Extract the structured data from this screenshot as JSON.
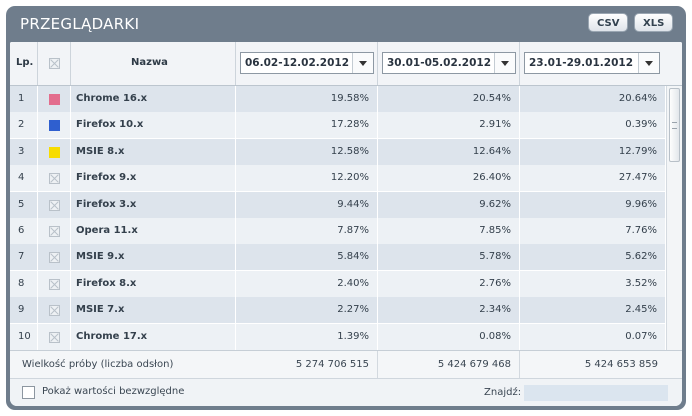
{
  "title": "PRZEGLĄDARKI",
  "export": {
    "csv": "CSV",
    "xls": "XLS"
  },
  "header": {
    "lp": "Lp.",
    "name": "Nazwa",
    "periods": [
      "06.02-12.02.2012",
      "30.01-05.02.2012",
      "23.01-29.01.2012"
    ]
  },
  "rows": [
    {
      "lp": "1",
      "color": "#e36d8d",
      "name": "Chrome 16.x",
      "v": [
        "19.58%",
        "20.54%",
        "20.64%"
      ]
    },
    {
      "lp": "2",
      "color": "#2f5fcf",
      "name": "Firefox 10.x",
      "v": [
        "17.28%",
        "2.91%",
        "0.39%"
      ]
    },
    {
      "lp": "3",
      "color": "#f7dc00",
      "name": "MSIE 8.x",
      "v": [
        "12.58%",
        "12.64%",
        "12.79%"
      ]
    },
    {
      "lp": "4",
      "color": "",
      "name": "Firefox 9.x",
      "v": [
        "12.20%",
        "26.40%",
        "27.47%"
      ]
    },
    {
      "lp": "5",
      "color": "",
      "name": "Firefox 3.x",
      "v": [
        "9.44%",
        "9.62%",
        "9.96%"
      ]
    },
    {
      "lp": "6",
      "color": "",
      "name": "Opera 11.x",
      "v": [
        "7.87%",
        "7.85%",
        "7.76%"
      ]
    },
    {
      "lp": "7",
      "color": "",
      "name": "MSIE 9.x",
      "v": [
        "5.84%",
        "5.78%",
        "5.62%"
      ]
    },
    {
      "lp": "8",
      "color": "",
      "name": "Firefox 8.x",
      "v": [
        "2.40%",
        "2.76%",
        "3.52%"
      ]
    },
    {
      "lp": "9",
      "color": "",
      "name": "MSIE 7.x",
      "v": [
        "2.27%",
        "2.34%",
        "2.45%"
      ]
    },
    {
      "lp": "10",
      "color": "",
      "name": "Chrome 17.x",
      "v": [
        "1.39%",
        "0.08%",
        "0.07%"
      ]
    }
  ],
  "footer": {
    "label": "Wielkość próby (liczba odsłon)",
    "values": [
      "5 274 706 515",
      "5 424 679 468",
      "5 424 653 859"
    ]
  },
  "bottom": {
    "checkbox_label": "Pokaż wartości bezwzględne",
    "find_label": "Znajdź:",
    "find_value": ""
  }
}
